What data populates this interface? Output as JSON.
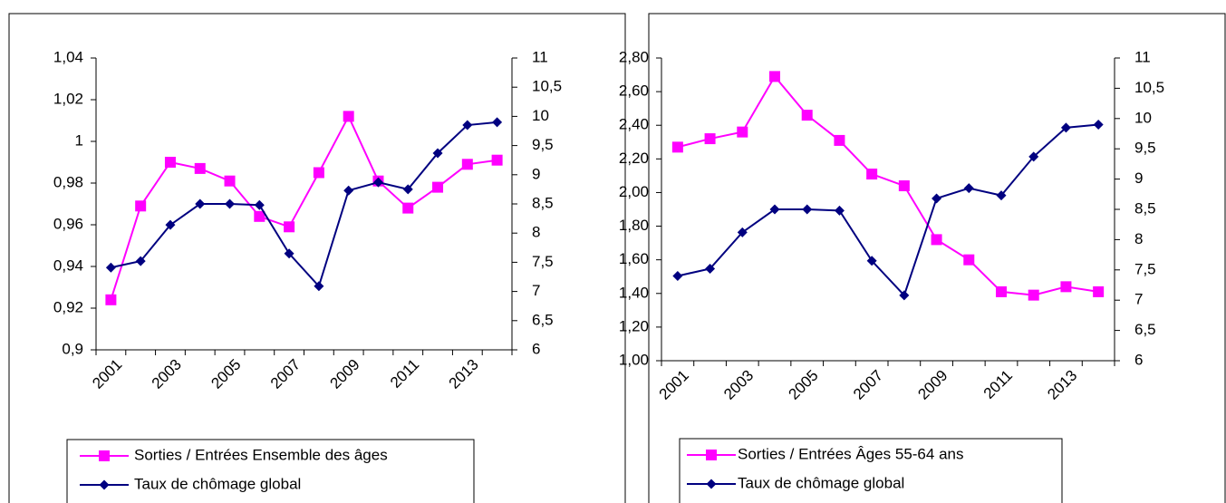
{
  "chart_data": [
    {
      "type": "line",
      "categories": [
        "2001",
        null,
        "2003",
        null,
        "2005",
        null,
        "2007",
        null,
        "2009",
        null,
        "2011",
        null,
        "2013",
        null
      ],
      "series": [
        {
          "name": "Sorties / Entrées Ensemble des âges",
          "color": "#ff00ff",
          "marker": "square",
          "axis": "y",
          "values": [
            0.924,
            0.969,
            0.99,
            0.987,
            0.981,
            0.964,
            0.959,
            0.985,
            1.012,
            0.981,
            0.968,
            0.978,
            0.989,
            0.991
          ]
        },
        {
          "name": "Taux de chômage global",
          "color": "#000080",
          "marker": "diamond",
          "axis": "y2",
          "values": [
            7.41,
            7.52,
            8.14,
            8.5,
            8.5,
            8.48,
            7.65,
            7.09,
            8.73,
            8.87,
            8.75,
            9.37,
            9.85,
            9.9
          ]
        }
      ],
      "ylim": [
        0.9,
        1.04
      ],
      "yticks": [
        {
          "value": 0.9,
          "label": "0,9"
        },
        {
          "value": 0.92,
          "label": "0,92"
        },
        {
          "value": 0.94,
          "label": "0,94"
        },
        {
          "value": 0.96,
          "label": "0,96"
        },
        {
          "value": 0.98,
          "label": "0,98"
        },
        1,
        {
          "value": 1.02,
          "label": "1,02"
        },
        {
          "value": 1.04,
          "label": "1,04"
        }
      ],
      "y2lim": [
        6,
        11
      ],
      "y2ticks": [
        6,
        {
          "value": 6.5,
          "label": "6,5"
        },
        7,
        {
          "value": 7.5,
          "label": "7,5"
        },
        8,
        {
          "value": 8.5,
          "label": "8,5"
        },
        9,
        {
          "value": 9.5,
          "label": "9,5"
        },
        10,
        {
          "value": 10.5,
          "label": "10,5"
        },
        11
      ],
      "legend": "bottom"
    },
    {
      "type": "line",
      "categories": [
        "2001",
        null,
        "2003",
        null,
        "2005",
        null,
        "2007",
        null,
        "2009",
        null,
        "2011",
        null,
        "2013",
        null
      ],
      "series": [
        {
          "name": "Sorties / Entrées Âges 55-64 ans",
          "color": "#ff00ff",
          "marker": "square",
          "axis": "y",
          "values": [
            2.27,
            2.32,
            2.36,
            2.69,
            2.46,
            2.31,
            2.11,
            2.04,
            1.72,
            1.6,
            1.41,
            1.39,
            1.44,
            1.41
          ]
        },
        {
          "name": "Taux de chômage global",
          "color": "#000080",
          "marker": "diamond",
          "axis": "y2",
          "values": [
            7.4,
            7.52,
            8.12,
            8.5,
            8.5,
            8.48,
            7.65,
            7.08,
            8.68,
            8.85,
            8.73,
            9.37,
            9.85,
            9.9
          ]
        }
      ],
      "ylim": [
        1.0,
        2.8
      ],
      "yticks": [
        {
          "value": 1.0,
          "label": "1,00"
        },
        {
          "value": 1.2,
          "label": "1,20"
        },
        {
          "value": 1.4,
          "label": "1,40"
        },
        {
          "value": 1.6,
          "label": "1,60"
        },
        {
          "value": 1.8,
          "label": "1,80"
        },
        {
          "value": 2.0,
          "label": "2,00"
        },
        {
          "value": 2.2,
          "label": "2,20"
        },
        {
          "value": 2.4,
          "label": "2,40"
        },
        {
          "value": 2.6,
          "label": "2,60"
        },
        {
          "value": 2.8,
          "label": "2,80"
        }
      ],
      "y2lim": [
        6,
        11
      ],
      "y2ticks": [
        6,
        {
          "value": 6.5,
          "label": "6,5"
        },
        7,
        {
          "value": 7.5,
          "label": "7,5"
        },
        8,
        {
          "value": 8.5,
          "label": "8,5"
        },
        9,
        {
          "value": 9.5,
          "label": "9,5"
        },
        10,
        {
          "value": 10.5,
          "label": "10,5"
        },
        11
      ],
      "legend": "bottom"
    }
  ]
}
